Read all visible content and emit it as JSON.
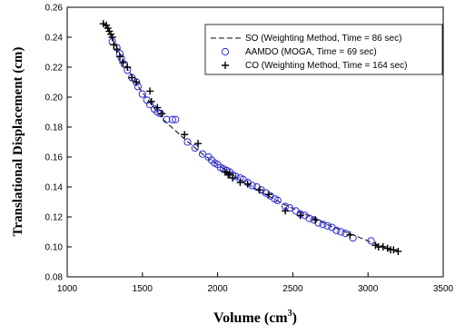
{
  "chart_data": {
    "type": "scatter",
    "title": "",
    "xlabel": "Volume (cm",
    "xlabel_sup": "3",
    "xlabel_close": ")",
    "ylabel": "Translational Displacement (cm)",
    "xlim": [
      1000,
      3500
    ],
    "ylim": [
      0.08,
      0.26
    ],
    "xticks": [
      "1000",
      "1500",
      "2000",
      "2500",
      "3000",
      "3500"
    ],
    "yticks": [
      "0.08",
      "0.10",
      "0.12",
      "0.14",
      "0.16",
      "0.18",
      "0.20",
      "0.22",
      "0.24",
      "0.26"
    ],
    "grid": false,
    "legend_position": "top-right",
    "colors": {
      "circle": "#2b2bd6",
      "cross": "#000000",
      "line": "#000000"
    },
    "series": [
      {
        "name": "SO (Weighting Method, Time = 86 sec)",
        "marker": "dashed-line",
        "x": [
          1240,
          1280,
          1330,
          1400,
          1480,
          1560,
          1650,
          1780,
          1900,
          2000,
          2100,
          2200,
          2300,
          2450,
          2600,
          2750,
          2900,
          3050,
          3200
        ],
        "y": [
          0.25,
          0.243,
          0.233,
          0.219,
          0.206,
          0.195,
          0.184,
          0.172,
          0.162,
          0.155,
          0.148,
          0.142,
          0.136,
          0.128,
          0.121,
          0.114,
          0.108,
          0.102,
          0.097
        ]
      },
      {
        "name": "AAMDO (MOGA, Time = 69 sec)",
        "marker": "open-circle",
        "x": [
          1300,
          1330,
          1350,
          1360,
          1380,
          1400,
          1430,
          1460,
          1470,
          1500,
          1530,
          1550,
          1580,
          1600,
          1620,
          1660,
          1700,
          1720,
          1800,
          1850,
          1900,
          1940,
          1960,
          1980,
          2000,
          2020,
          2040,
          2060,
          2080,
          2100,
          2120,
          2150,
          2170,
          2200,
          2230,
          2260,
          2290,
          2320,
          2350,
          2380,
          2400,
          2450,
          2480,
          2520,
          2550,
          2580,
          2610,
          2640,
          2670,
          2700,
          2730,
          2760,
          2790,
          2820,
          2850,
          2900,
          3020
        ],
        "y": [
          0.237,
          0.233,
          0.229,
          0.226,
          0.222,
          0.218,
          0.213,
          0.21,
          0.207,
          0.202,
          0.198,
          0.195,
          0.192,
          0.19,
          0.189,
          0.185,
          0.185,
          0.185,
          0.17,
          0.166,
          0.162,
          0.16,
          0.158,
          0.156,
          0.155,
          0.153,
          0.152,
          0.151,
          0.15,
          0.148,
          0.147,
          0.146,
          0.145,
          0.143,
          0.141,
          0.14,
          0.138,
          0.136,
          0.134,
          0.132,
          0.131,
          0.127,
          0.126,
          0.124,
          0.122,
          0.121,
          0.119,
          0.118,
          0.116,
          0.115,
          0.114,
          0.113,
          0.111,
          0.11,
          0.109,
          0.106,
          0.104
        ]
      },
      {
        "name": "CO (Weighting Method, Time = 164 sec)",
        "marker": "plus",
        "x": [
          1240,
          1260,
          1270,
          1280,
          1290,
          1300,
          1310,
          1330,
          1350,
          1370,
          1400,
          1430,
          1460,
          1550,
          1560,
          1600,
          1630,
          1780,
          1870,
          2050,
          2070,
          2080,
          2100,
          2150,
          2200,
          2280,
          2340,
          2450,
          2550,
          2650,
          2880,
          3050,
          3070,
          3100,
          3130,
          3150,
          3170,
          3200
        ],
        "y": [
          0.249,
          0.248,
          0.246,
          0.244,
          0.242,
          0.24,
          0.235,
          0.232,
          0.227,
          0.223,
          0.22,
          0.213,
          0.21,
          0.204,
          0.197,
          0.193,
          0.189,
          0.175,
          0.169,
          0.15,
          0.148,
          0.149,
          0.146,
          0.143,
          0.142,
          0.138,
          0.135,
          0.124,
          0.121,
          0.118,
          0.108,
          0.101,
          0.1,
          0.1,
          0.099,
          0.098,
          0.098,
          0.097
        ]
      }
    ]
  }
}
